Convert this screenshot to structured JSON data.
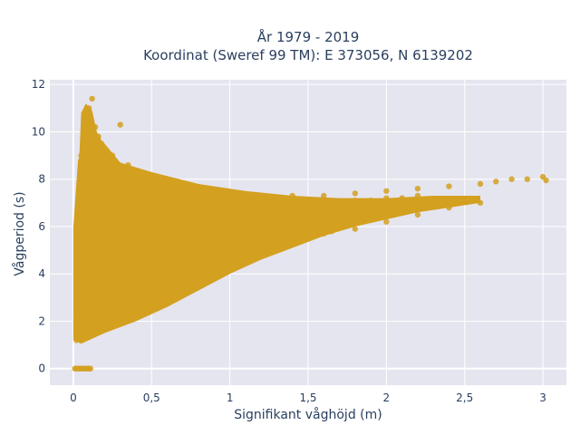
{
  "chart_data": {
    "type": "scatter",
    "title_line1": "År 1979 - 2019",
    "title_line2": "Koordinat (Sweref 99 TM): E 373056, N 6139202",
    "xlabel": "Signifikant våghöjd (m)",
    "ylabel": "Vågperiod (s)",
    "xlim": [
      -0.15,
      3.15
    ],
    "ylim": [
      -0.7,
      12.2
    ],
    "x_ticks": [
      0,
      0.5,
      1,
      1.5,
      2,
      2.5,
      3
    ],
    "x_tick_labels": [
      "0",
      "0,5",
      "1",
      "1,5",
      "2",
      "2,5",
      "3"
    ],
    "y_ticks": [
      0,
      2,
      4,
      6,
      8,
      10,
      12
    ],
    "y_tick_labels": [
      "0",
      "2",
      "4",
      "6",
      "8",
      "10",
      "12"
    ],
    "grid": true,
    "colors": {
      "point": "#D4A020",
      "plot_bg": "#E5E5EF",
      "grid": "#FFFFFF",
      "text": "#2A3F5F"
    },
    "series": [
      {
        "x": [
          0.01,
          0.03,
          0.05,
          0.07,
          0.09,
          0.11,
          0.02,
          0.04,
          0.06,
          0.08,
          0.1,
          0.02,
          0.03,
          0.04,
          0.05,
          0.06,
          0.08,
          0.1,
          0.12,
          0.15,
          0.2,
          0.25,
          0.3,
          0.03,
          0.05,
          0.08,
          0.1,
          0.13,
          0.16,
          0.2,
          0.25,
          0.3,
          0.35,
          0.4,
          0.45,
          0.5,
          0.05,
          0.1,
          0.15,
          0.2,
          0.3,
          0.4,
          0.5,
          0.6,
          0.7,
          0.8,
          0.9,
          1.0,
          0.1,
          0.2,
          0.3,
          0.4,
          0.5,
          0.6,
          0.7,
          0.8,
          0.9,
          1.0,
          1.1,
          1.2,
          1.3,
          1.4,
          0.2,
          0.3,
          0.4,
          0.5,
          0.6,
          0.7,
          0.8,
          0.9,
          1.0,
          1.1,
          1.2,
          1.3,
          1.4,
          1.5,
          1.6,
          1.7,
          1.8,
          0.4,
          0.5,
          0.6,
          0.7,
          0.8,
          0.9,
          1.0,
          1.1,
          1.2,
          1.3,
          1.4,
          1.5,
          1.6,
          1.7,
          1.8,
          1.9,
          2.0,
          2.1,
          2.2,
          0.6,
          0.8,
          1.0,
          1.2,
          1.4,
          1.6,
          1.8,
          2.0,
          2.2,
          2.4,
          2.6,
          2.7,
          2.8,
          2.9,
          3.0,
          3.02,
          0.05,
          0.08,
          0.1,
          0.12,
          0.15,
          0.18,
          0.2,
          0.22,
          0.25,
          0.3,
          0.35,
          0.4,
          0.45,
          0.5,
          0.05,
          0.1,
          0.15,
          0.2,
          0.25,
          0.3,
          0.35,
          0.4,
          0.5,
          0.6,
          0.7,
          0.8,
          0.9,
          1.0,
          1.1,
          1.2,
          0.08,
          0.1,
          0.12,
          0.14,
          0.16,
          0.18,
          0.2,
          0.25,
          0.3,
          0.35,
          0.2,
          0.4,
          0.6,
          0.8,
          1.0,
          1.2,
          1.4,
          1.6,
          1.8,
          2.0,
          2.2,
          2.4,
          2.6,
          0.15,
          0.3,
          0.45,
          0.6,
          0.75,
          0.9,
          1.05,
          1.2,
          1.35,
          1.5,
          1.65
        ],
        "y": [
          0,
          0,
          0,
          0,
          0,
          0,
          0,
          0,
          0,
          0,
          0,
          1.2,
          1.3,
          1.4,
          1.5,
          1.6,
          1.7,
          1.8,
          1.9,
          2.0,
          2.2,
          2.4,
          2.6,
          2.0,
          2.3,
          2.6,
          2.9,
          3.1,
          3.3,
          3.5,
          3.7,
          3.9,
          4.1,
          4.3,
          4.5,
          4.6,
          3.5,
          4.0,
          4.3,
          4.6,
          5.0,
          5.2,
          5.3,
          5.5,
          5.6,
          5.7,
          5.8,
          5.9,
          5.0,
          5.3,
          5.6,
          5.8,
          5.9,
          6.0,
          6.1,
          6.1,
          6.2,
          6.2,
          6.3,
          6.3,
          6.4,
          6.4,
          6.0,
          6.1,
          6.2,
          6.3,
          6.3,
          6.4,
          6.4,
          6.5,
          6.5,
          6.6,
          6.6,
          6.6,
          6.7,
          6.7,
          6.7,
          6.8,
          6.8,
          6.6,
          6.6,
          6.7,
          6.7,
          6.8,
          6.8,
          6.8,
          6.9,
          6.9,
          6.9,
          7.0,
          7.0,
          7.0,
          7.0,
          7.1,
          7.1,
          7.2,
          7.2,
          7.3,
          7.0,
          7.1,
          7.2,
          7.2,
          7.3,
          7.3,
          7.4,
          7.5,
          7.6,
          7.7,
          7.8,
          7.9,
          8.0,
          8.0,
          8.1,
          7.95,
          6.5,
          7.0,
          7.5,
          8.0,
          8.2,
          8.4,
          8.0,
          7.8,
          7.6,
          7.4,
          7.2,
          7.0,
          6.9,
          6.8,
          9.0,
          9.5,
          9.0,
          8.8,
          8.5,
          8.3,
          8.1,
          7.9,
          7.7,
          7.6,
          7.5,
          7.4,
          7.3,
          7.2,
          7.1,
          7.0,
          10.5,
          11.0,
          11.4,
          10.2,
          9.8,
          9.5,
          9.3,
          9.0,
          10.3,
          8.6,
          4.5,
          3.8,
          3.5,
          4.5,
          5.0,
          5.2,
          5.5,
          5.7,
          5.9,
          6.2,
          6.5,
          6.8,
          7.0,
          1.5,
          2.2,
          2.8,
          3.4,
          3.9,
          4.3,
          4.7,
          5.0,
          5.3,
          5.6,
          5.8
        ]
      }
    ]
  }
}
